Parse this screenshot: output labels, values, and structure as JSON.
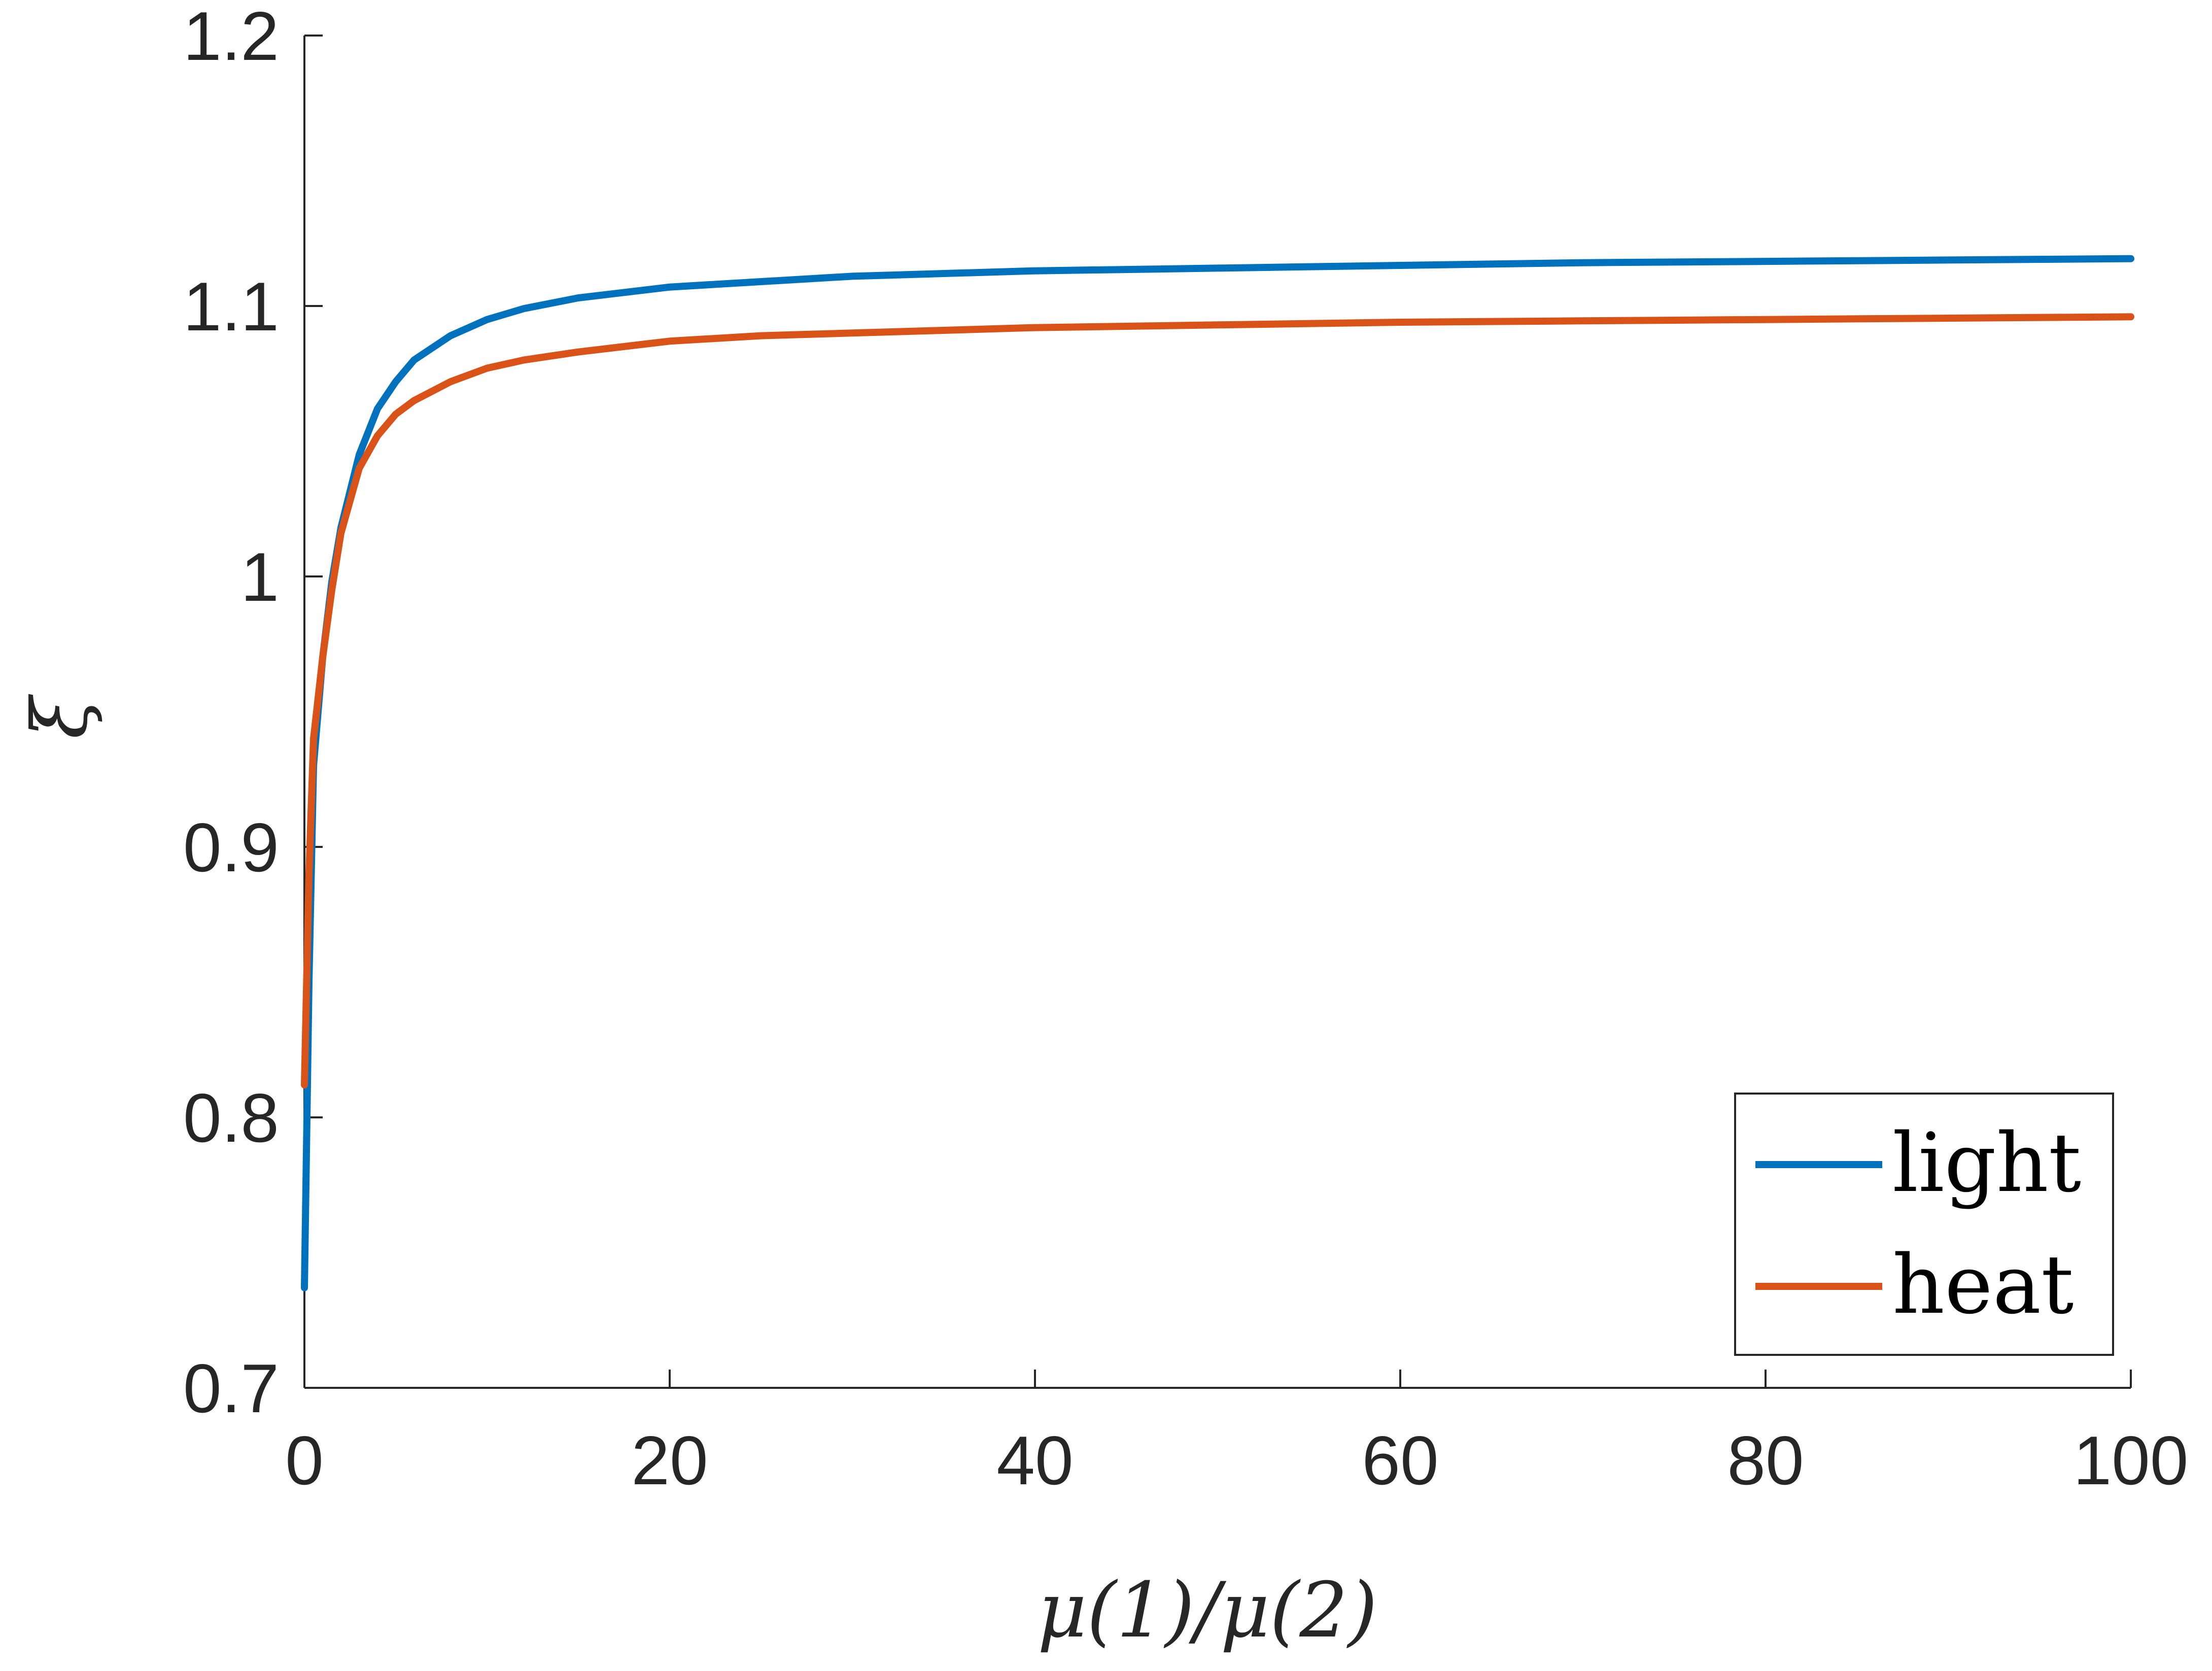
{
  "chart_data": {
    "type": "line",
    "xlabel": "μ(1)/μ(2)",
    "ylabel": "ξ",
    "xlim": [
      0,
      100
    ],
    "ylim": [
      0.7,
      1.2
    ],
    "xticks": [
      0,
      20,
      40,
      60,
      80,
      100
    ],
    "xtick_labels": [
      "0",
      "20",
      "40",
      "60",
      "80",
      "100"
    ],
    "yticks": [
      0.7,
      0.8,
      0.9,
      1.0,
      1.1,
      1.2
    ],
    "ytick_labels": [
      "0.7",
      "0.8",
      "0.9",
      "1",
      "1.1",
      "1.2"
    ],
    "grid": false,
    "legend_position": "bottom-right",
    "series": [
      {
        "name": "light",
        "color": "#0072BD",
        "x": [
          0,
          0.25,
          0.5,
          1,
          1.5,
          2,
          3,
          4,
          5,
          6,
          8,
          10,
          12,
          15,
          20,
          25,
          30,
          40,
          50,
          60,
          70,
          80,
          90,
          100
        ],
        "y": [
          0.737,
          0.85,
          0.93,
          0.97,
          0.998,
          1.018,
          1.045,
          1.062,
          1.072,
          1.08,
          1.089,
          1.095,
          1.099,
          1.103,
          1.107,
          1.109,
          1.111,
          1.113,
          1.114,
          1.115,
          1.116,
          1.1165,
          1.117,
          1.1175
        ]
      },
      {
        "name": "heat",
        "color": "#D95319",
        "x": [
          0,
          0.25,
          0.5,
          1,
          1.5,
          2,
          3,
          4,
          5,
          6,
          8,
          10,
          12,
          15,
          20,
          25,
          30,
          40,
          50,
          60,
          70,
          80,
          90,
          100
        ],
        "y": [
          0.812,
          0.89,
          0.94,
          0.97,
          0.995,
          1.016,
          1.04,
          1.052,
          1.06,
          1.065,
          1.072,
          1.077,
          1.08,
          1.083,
          1.087,
          1.089,
          1.09,
          1.092,
          1.093,
          1.094,
          1.0945,
          1.095,
          1.0955,
          1.096
        ]
      }
    ]
  }
}
